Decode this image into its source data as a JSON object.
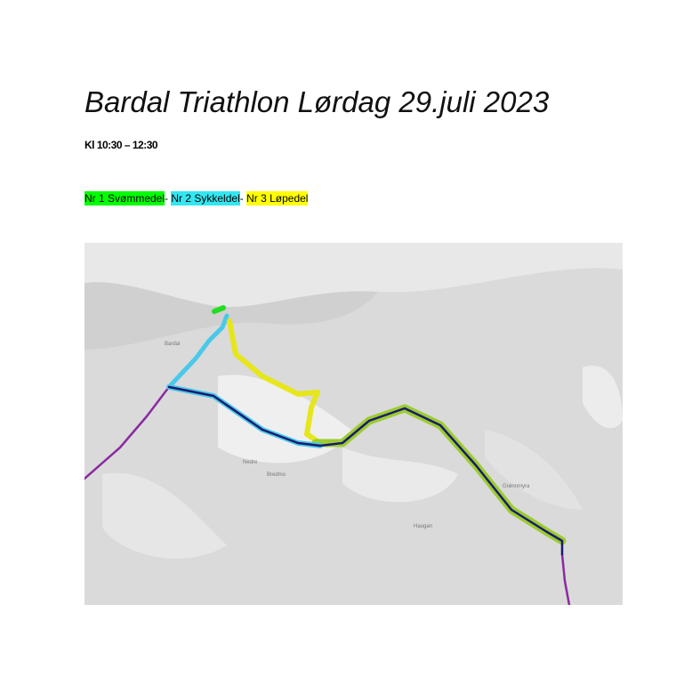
{
  "header": {
    "title": "Bardal Triathlon Lørdag 29.juli 2023",
    "time": "Kl 10:30 – 12:30"
  },
  "legend": {
    "items": [
      "Nr 1 Svømmedel",
      "-",
      "Nr 2 Sykkeldel",
      "-",
      "Nr 3 Løpedel"
    ]
  },
  "map": {
    "labels": [
      "Bardal",
      "Nedre",
      "Bredmo",
      "Haugan",
      "Grønnmyra"
    ]
  }
}
